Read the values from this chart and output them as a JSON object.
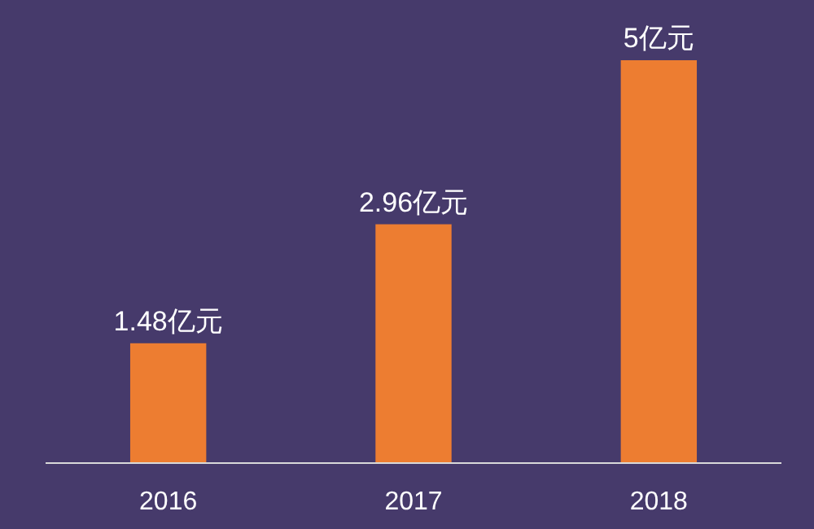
{
  "chart_data": {
    "type": "bar",
    "categories": [
      "2016",
      "2017",
      "2018"
    ],
    "values": [
      1.48,
      2.96,
      5
    ],
    "color": "#ed7d31",
    "value_labels": [
      "1.48亿元",
      "2.96亿元",
      "5亿元"
    ],
    "grid": false
  }
}
